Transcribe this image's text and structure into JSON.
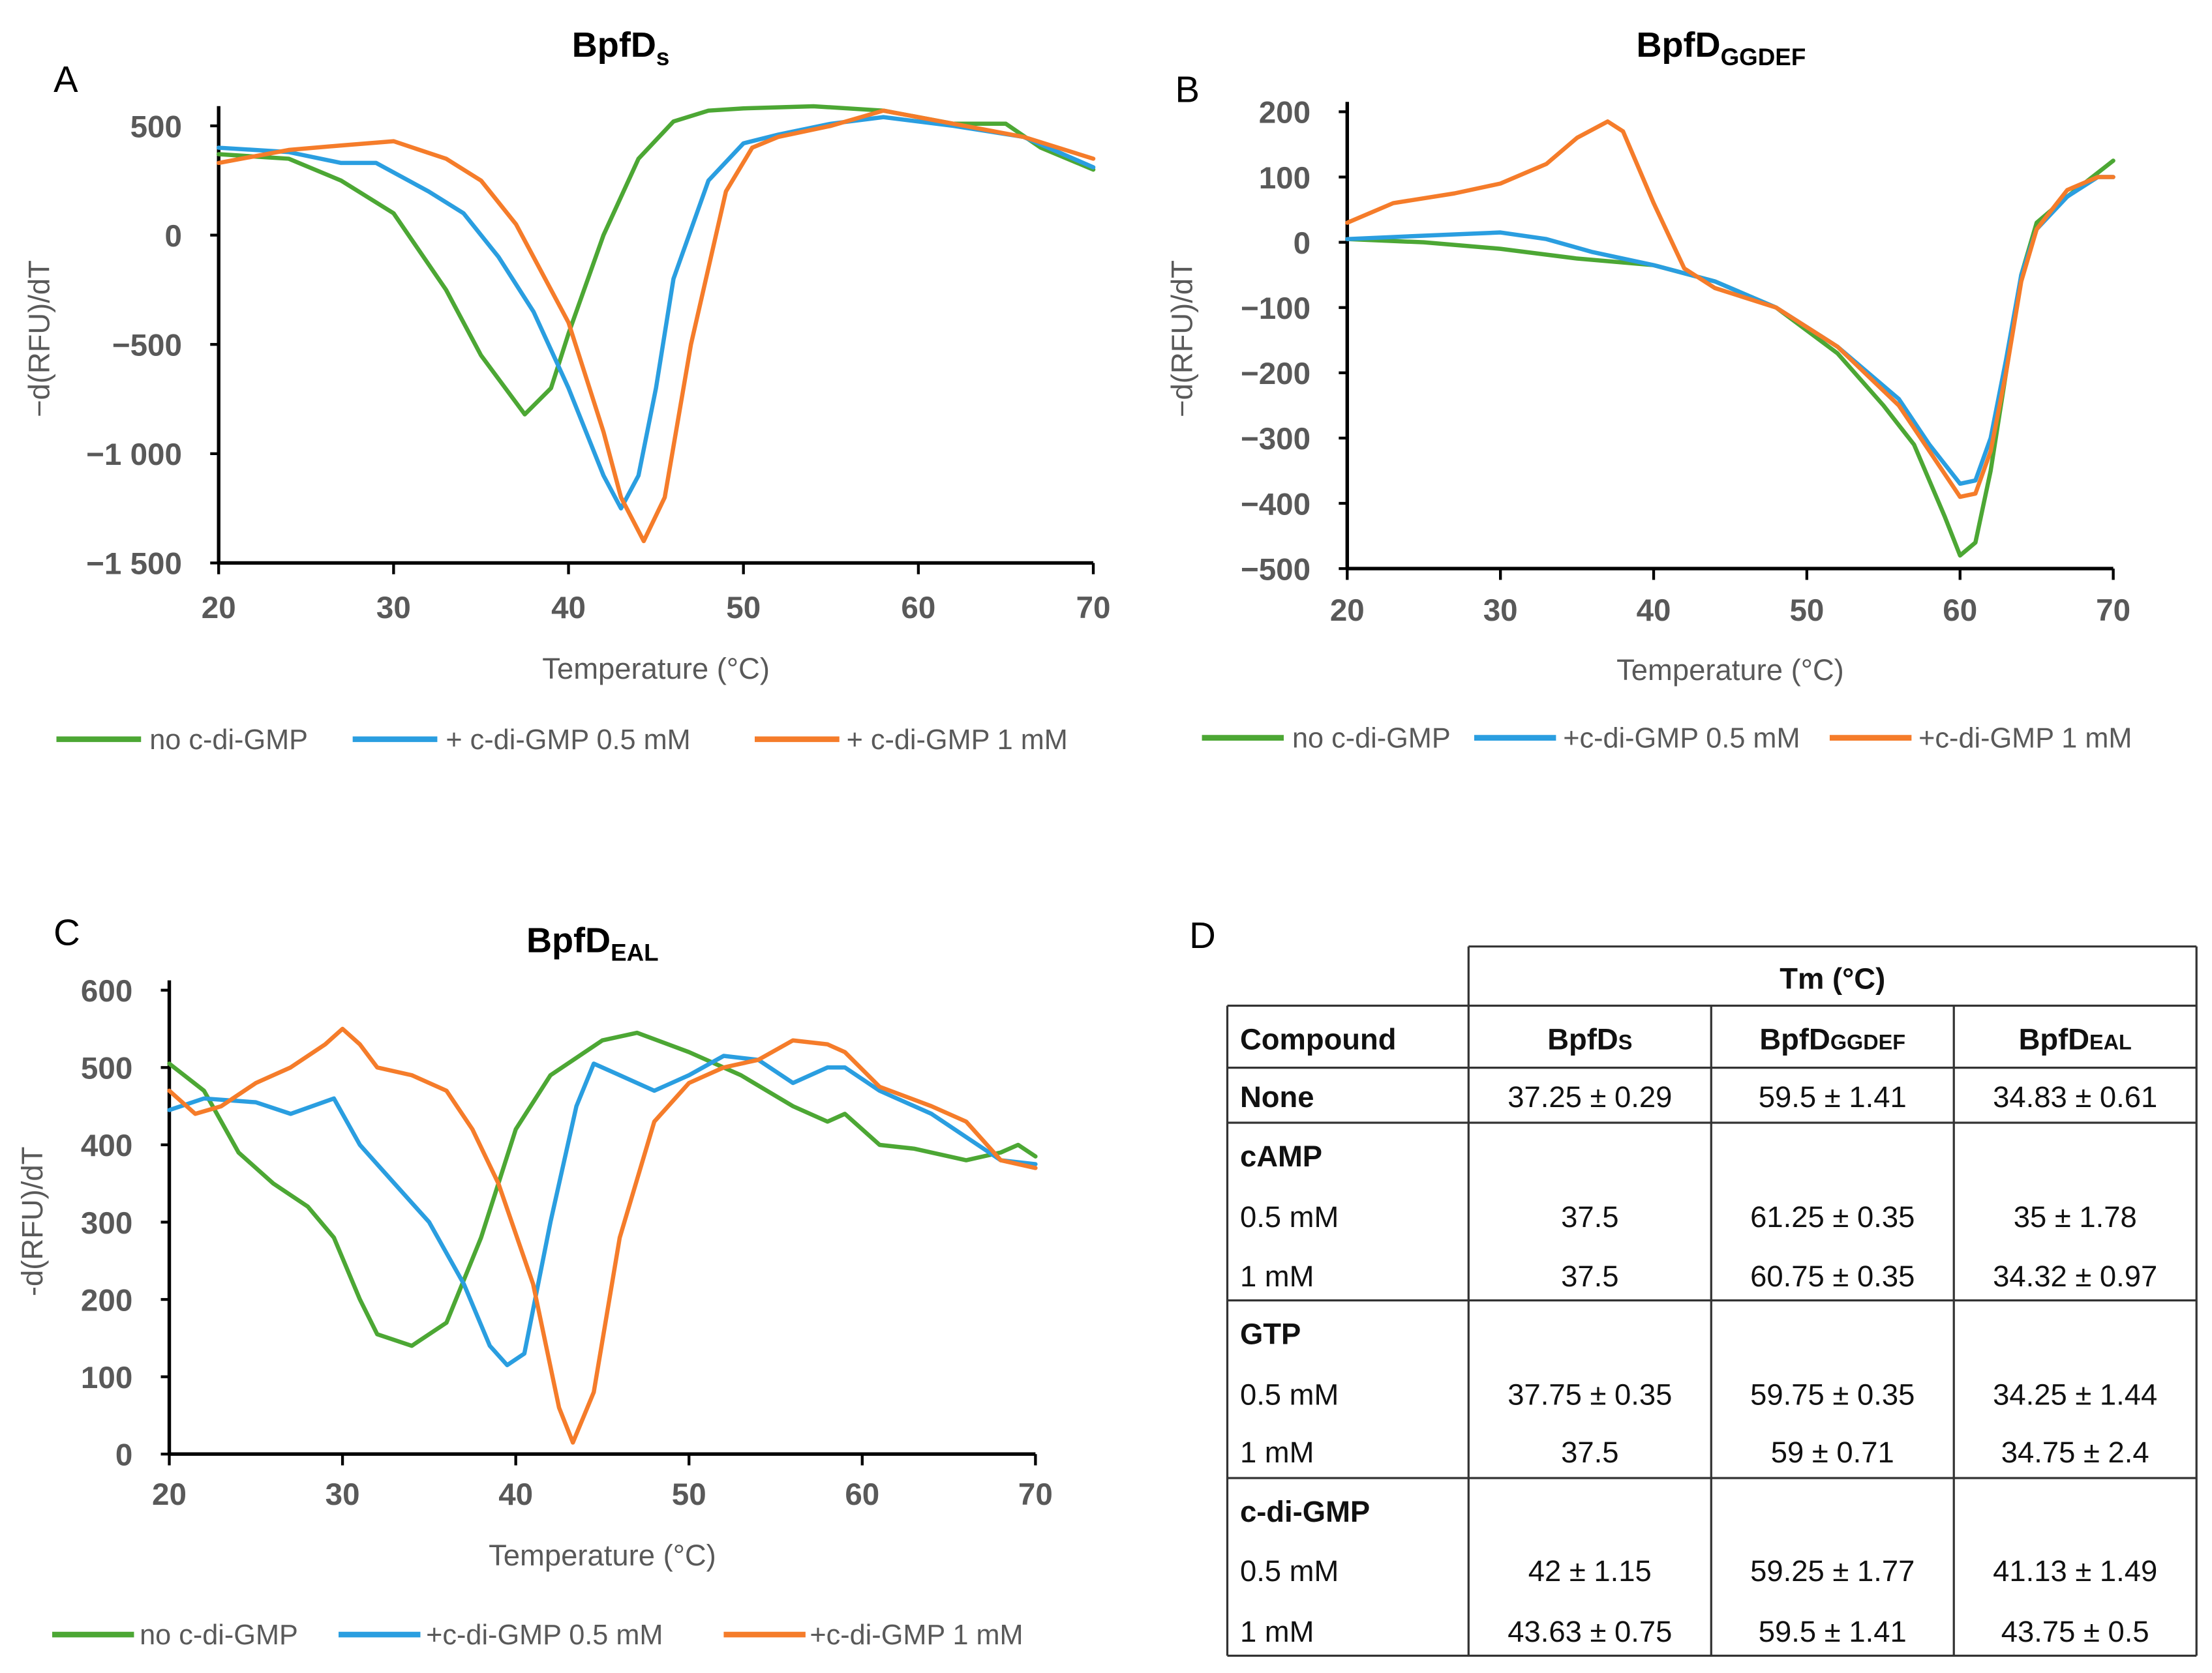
{
  "panels": {
    "A": "A",
    "B": "B",
    "C": "C",
    "D": "D"
  },
  "chart_data": [
    {
      "type": "line",
      "id": "A",
      "title_main": "BpfD",
      "title_sub": "s",
      "xlabel": "Temperature (°C)",
      "ylabel": "−d(RFU)/dT",
      "xlim": [
        20,
        70
      ],
      "ylim": [
        -1500,
        500
      ],
      "xticks": [
        20,
        30,
        40,
        50,
        60,
        70
      ],
      "xtick_labels": [
        "20",
        "30",
        "40",
        "50",
        "60",
        "70"
      ],
      "yticks": [
        500,
        0,
        -500,
        -1000,
        -1500
      ],
      "ytick_labels": [
        "500",
        "0",
        "−500",
        "−1 000",
        "−1 500"
      ],
      "legend_position": "bottom",
      "series": [
        {
          "name": "no c-di-GMP",
          "color": "#4ca734",
          "points": [
            [
              20,
              370
            ],
            [
              24,
              350
            ],
            [
              27,
              250
            ],
            [
              30,
              100
            ],
            [
              33,
              -250
            ],
            [
              35,
              -550
            ],
            [
              37.5,
              -820
            ],
            [
              39,
              -700
            ],
            [
              40,
              -450
            ],
            [
              42,
              0
            ],
            [
              44,
              350
            ],
            [
              46,
              520
            ],
            [
              48,
              570
            ],
            [
              50,
              580
            ],
            [
              54,
              590
            ],
            [
              58,
              570
            ],
            [
              62,
              510
            ],
            [
              65,
              510
            ],
            [
              67,
              400
            ],
            [
              70,
              300
            ]
          ]
        },
        {
          "name": "+ c-di-GMP 0.5 mM",
          "color": "#2a9ee0",
          "points": [
            [
              20,
              400
            ],
            [
              24,
              380
            ],
            [
              27,
              330
            ],
            [
              29,
              330
            ],
            [
              32,
              200
            ],
            [
              34,
              100
            ],
            [
              36,
              -100
            ],
            [
              38,
              -350
            ],
            [
              40,
              -700
            ],
            [
              42,
              -1100
            ],
            [
              43,
              -1250
            ],
            [
              44,
              -1100
            ],
            [
              45,
              -700
            ],
            [
              46,
              -200
            ],
            [
              48,
              250
            ],
            [
              50,
              420
            ],
            [
              52,
              460
            ],
            [
              55,
              510
            ],
            [
              58,
              540
            ],
            [
              62,
              500
            ],
            [
              66,
              450
            ],
            [
              70,
              310
            ]
          ]
        },
        {
          "name": "+ c-di-GMP 1 mM",
          "color": "#f57c2a",
          "points": [
            [
              20,
              330
            ],
            [
              24,
              390
            ],
            [
              27,
              410
            ],
            [
              30,
              430
            ],
            [
              33,
              350
            ],
            [
              35,
              250
            ],
            [
              37,
              50
            ],
            [
              38,
              -100
            ],
            [
              40,
              -400
            ],
            [
              42,
              -900
            ],
            [
              43,
              -1200
            ],
            [
              44.3,
              -1400
            ],
            [
              45.5,
              -1200
            ],
            [
              47,
              -500
            ],
            [
              49,
              200
            ],
            [
              50.5,
              400
            ],
            [
              52,
              450
            ],
            [
              55,
              500
            ],
            [
              58,
              570
            ],
            [
              62,
              510
            ],
            [
              66,
              450
            ],
            [
              70,
              350
            ]
          ]
        }
      ]
    },
    {
      "type": "line",
      "id": "B",
      "title_main": "BpfD",
      "title_sub": "GGDEF",
      "xlabel": "Temperature (°C)",
      "ylabel": "−d(RFU)/dT",
      "xlim": [
        20,
        70
      ],
      "ylim": [
        -500,
        200
      ],
      "xticks": [
        20,
        30,
        40,
        50,
        60,
        70
      ],
      "xtick_labels": [
        "20",
        "30",
        "40",
        "50",
        "60",
        "70"
      ],
      "yticks": [
        200,
        100,
        0,
        -100,
        -200,
        -300,
        -400,
        -500
      ],
      "ytick_labels": [
        "200",
        "100",
        "0",
        "−100",
        "−200",
        "−300",
        "−400",
        "−500"
      ],
      "legend_position": "bottom",
      "series": [
        {
          "name": "no c-di-GMP",
          "color": "#4ca734",
          "points": [
            [
              20,
              5
            ],
            [
              25,
              0
            ],
            [
              30,
              -10
            ],
            [
              35,
              -25
            ],
            [
              40,
              -35
            ],
            [
              44,
              -60
            ],
            [
              48,
              -100
            ],
            [
              52,
              -170
            ],
            [
              55,
              -250
            ],
            [
              57,
              -310
            ],
            [
              59,
              -420
            ],
            [
              60,
              -480
            ],
            [
              61,
              -460
            ],
            [
              62,
              -350
            ],
            [
              63,
              -200
            ],
            [
              64,
              -50
            ],
            [
              65,
              30
            ],
            [
              67,
              70
            ],
            [
              70,
              125
            ]
          ]
        },
        {
          "name": "+c-di-GMP 0.5 mM",
          "color": "#2a9ee0",
          "points": [
            [
              20,
              5
            ],
            [
              25,
              10
            ],
            [
              30,
              15
            ],
            [
              33,
              5
            ],
            [
              36,
              -15
            ],
            [
              40,
              -35
            ],
            [
              44,
              -60
            ],
            [
              48,
              -100
            ],
            [
              52,
              -160
            ],
            [
              56,
              -240
            ],
            [
              58,
              -310
            ],
            [
              60,
              -370
            ],
            [
              61,
              -365
            ],
            [
              62,
              -300
            ],
            [
              63,
              -180
            ],
            [
              64,
              -50
            ],
            [
              65,
              20
            ],
            [
              67,
              70
            ],
            [
              69,
              100
            ],
            [
              70,
              100
            ]
          ]
        },
        {
          "name": "+c-di-GMP 1 mM",
          "color": "#f57c2a",
          "points": [
            [
              20,
              30
            ],
            [
              23,
              60
            ],
            [
              27,
              75
            ],
            [
              30,
              90
            ],
            [
              33,
              120
            ],
            [
              35,
              160
            ],
            [
              37,
              185
            ],
            [
              38,
              170
            ],
            [
              40,
              60
            ],
            [
              42,
              -40
            ],
            [
              44,
              -70
            ],
            [
              48,
              -100
            ],
            [
              52,
              -160
            ],
            [
              56,
              -250
            ],
            [
              58,
              -320
            ],
            [
              60,
              -390
            ],
            [
              61,
              -385
            ],
            [
              62,
              -320
            ],
            [
              63,
              -200
            ],
            [
              64,
              -60
            ],
            [
              65,
              20
            ],
            [
              67,
              80
            ],
            [
              69,
              100
            ],
            [
              70,
              100
            ]
          ]
        }
      ]
    },
    {
      "type": "line",
      "id": "C",
      "title_main": "BpfD",
      "title_sub": "EAL",
      "xlabel": "Temperature (°C)",
      "ylabel": "-d(RFU)/dT",
      "xlim": [
        20,
        70
      ],
      "ylim": [
        0,
        600
      ],
      "xticks": [
        20,
        30,
        40,
        50,
        60,
        70
      ],
      "xtick_labels": [
        "20",
        "30",
        "40",
        "50",
        "60",
        "70"
      ],
      "yticks": [
        600,
        500,
        400,
        300,
        200,
        100,
        0
      ],
      "ytick_labels": [
        "600",
        "500",
        "400",
        "300",
        "200",
        "100",
        "0"
      ],
      "legend_position": "bottom",
      "series": [
        {
          "name": "no c-di-GMP",
          "color": "#4ca734",
          "points": [
            [
              20,
              505
            ],
            [
              22,
              470
            ],
            [
              24,
              390
            ],
            [
              26,
              350
            ],
            [
              28,
              320
            ],
            [
              29.5,
              280
            ],
            [
              31,
              200
            ],
            [
              32,
              155
            ],
            [
              34,
              140
            ],
            [
              36,
              170
            ],
            [
              38,
              280
            ],
            [
              40,
              420
            ],
            [
              42,
              490
            ],
            [
              45,
              535
            ],
            [
              47,
              545
            ],
            [
              50,
              520
            ],
            [
              53,
              490
            ],
            [
              56,
              450
            ],
            [
              58,
              430
            ],
            [
              59,
              440
            ],
            [
              61,
              400
            ],
            [
              63,
              395
            ],
            [
              66,
              380
            ],
            [
              68,
              390
            ],
            [
              69,
              400
            ],
            [
              70,
              385
            ]
          ]
        },
        {
          "name": "+c-di-GMP 0.5 mM",
          "color": "#2a9ee0",
          "points": [
            [
              20,
              445
            ],
            [
              22,
              460
            ],
            [
              25,
              455
            ],
            [
              27,
              440
            ],
            [
              29.5,
              460
            ],
            [
              31,
              400
            ],
            [
              33,
              350
            ],
            [
              35,
              300
            ],
            [
              37,
              220
            ],
            [
              38.5,
              140
            ],
            [
              39.5,
              115
            ],
            [
              40.5,
              130
            ],
            [
              42,
              300
            ],
            [
              43.5,
              450
            ],
            [
              44.5,
              505
            ],
            [
              46,
              490
            ],
            [
              48,
              470
            ],
            [
              50,
              490
            ],
            [
              52,
              515
            ],
            [
              54,
              510
            ],
            [
              56,
              480
            ],
            [
              58,
              500
            ],
            [
              59,
              500
            ],
            [
              61,
              470
            ],
            [
              64,
              440
            ],
            [
              66,
              410
            ],
            [
              68,
              380
            ],
            [
              70,
              375
            ]
          ]
        },
        {
          "name": "+c-di-GMP 1 mM",
          "color": "#f57c2a",
          "points": [
            [
              20,
              470
            ],
            [
              21.5,
              440
            ],
            [
              23,
              450
            ],
            [
              25,
              480
            ],
            [
              27,
              500
            ],
            [
              29,
              530
            ],
            [
              30,
              550
            ],
            [
              31,
              530
            ],
            [
              32,
              500
            ],
            [
              34,
              490
            ],
            [
              36,
              470
            ],
            [
              37.5,
              420
            ],
            [
              39,
              350
            ],
            [
              41,
              220
            ],
            [
              42.5,
              60
            ],
            [
              43.3,
              15
            ],
            [
              44.5,
              80
            ],
            [
              46,
              280
            ],
            [
              48,
              430
            ],
            [
              50,
              480
            ],
            [
              52,
              500
            ],
            [
              54,
              510
            ],
            [
              56,
              535
            ],
            [
              58,
              530
            ],
            [
              59,
              520
            ],
            [
              61,
              475
            ],
            [
              64,
              450
            ],
            [
              66,
              430
            ],
            [
              68,
              380
            ],
            [
              70,
              370
            ]
          ]
        }
      ]
    },
    {
      "type": "table",
      "id": "D",
      "super_header": "Tm (°C)",
      "header": {
        "compound": "Compound",
        "cols": [
          {
            "main": "BpfD",
            "sub": "S"
          },
          {
            "main": "BpfD",
            "sub": "GGDEF"
          },
          {
            "main": "BpfD",
            "sub": "EAL"
          }
        ]
      },
      "rows": [
        {
          "label": "None",
          "bold": true,
          "values": [
            "37.25 ±  0.29",
            "59.5 ± 1.41",
            "34.83 ± 0.61"
          ]
        },
        {
          "label": "cAMP",
          "bold": true,
          "values": [
            "",
            "",
            ""
          ]
        },
        {
          "label": "0.5 mM",
          "bold": false,
          "values": [
            "37.5",
            "61.25 ± 0.35",
            "35 ± 1.78"
          ]
        },
        {
          "label": "1 mM",
          "bold": false,
          "values": [
            "37.5",
            "60.75 ± 0.35",
            "34.32 ± 0.97"
          ]
        },
        {
          "label": "GTP",
          "bold": true,
          "values": [
            "",
            "",
            ""
          ]
        },
        {
          "label": "0.5 mM",
          "bold": false,
          "values": [
            "37.75 ±  0.35",
            "59.75 ± 0.35",
            "34.25 ± 1.44"
          ]
        },
        {
          "label": "1 mM",
          "bold": false,
          "values": [
            "37.5",
            "59 ± 0.71",
            "34.75 ± 2.4"
          ]
        },
        {
          "label": "c-di-GMP",
          "bold": true,
          "values": [
            "",
            "",
            ""
          ]
        },
        {
          "label": "0.5 mM",
          "bold": false,
          "values": [
            "42 ± 1.15",
            "59.25 ± 1.77",
            "41.13 ± 1.49"
          ]
        },
        {
          "label": "1 mM",
          "bold": false,
          "values": [
            "43.63 ± 0.75",
            "59.5 ± 1.41",
            "43.75 ± 0.5"
          ]
        }
      ]
    }
  ]
}
